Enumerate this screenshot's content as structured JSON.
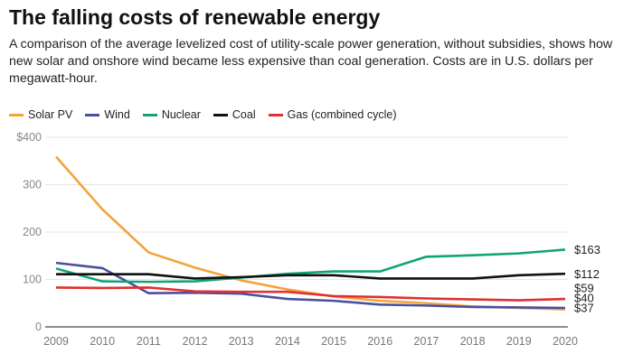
{
  "chart_data": {
    "type": "line",
    "title": "The falling costs of renewable energy",
    "subtitle": "A comparison of the average levelized cost of utility-scale power generation, without subsidies, shows how new solar and onshore wind became less expensive than coal generation. Costs are in U.S. dollars per megawatt-hour.",
    "xlabel": "",
    "ylabel": "",
    "x": [
      2009,
      2010,
      2011,
      2012,
      2013,
      2014,
      2015,
      2016,
      2017,
      2018,
      2019,
      2020
    ],
    "ylim": [
      0,
      400
    ],
    "yticks": [
      {
        "v": 0,
        "label": "0"
      },
      {
        "v": 100,
        "label": "100"
      },
      {
        "v": 200,
        "label": "200"
      },
      {
        "v": 300,
        "label": "300"
      },
      {
        "v": 400,
        "label": "$400"
      }
    ],
    "grid": true,
    "legend": "top-left",
    "series": [
      {
        "name": "Solar PV",
        "color": "#f5a23a",
        "values": [
          359,
          248,
          157,
          125,
          98,
          79,
          64,
          55,
          50,
          43,
          40,
          37
        ],
        "end_label": "$37"
      },
      {
        "name": "Wind",
        "color": "#4b4f9e",
        "values": [
          135,
          124,
          71,
          72,
          70,
          59,
          55,
          47,
          45,
          42,
          41,
          40
        ],
        "end_label": "$40"
      },
      {
        "name": "Nuclear",
        "color": "#12a37a",
        "values": [
          123,
          96,
          95,
          96,
          104,
          112,
          117,
          117,
          148,
          151,
          155,
          163
        ],
        "end_label": "$163"
      },
      {
        "name": "Coal",
        "color": "#111111",
        "values": [
          111,
          111,
          111,
          102,
          105,
          109,
          109,
          102,
          102,
          102,
          109,
          112
        ],
        "end_label": "$112"
      },
      {
        "name": "Gas (combined cycle)",
        "color": "#e03030",
        "values": [
          83,
          82,
          83,
          75,
          74,
          74,
          65,
          63,
          60,
          58,
          56,
          59
        ],
        "end_label": "$59"
      }
    ]
  }
}
